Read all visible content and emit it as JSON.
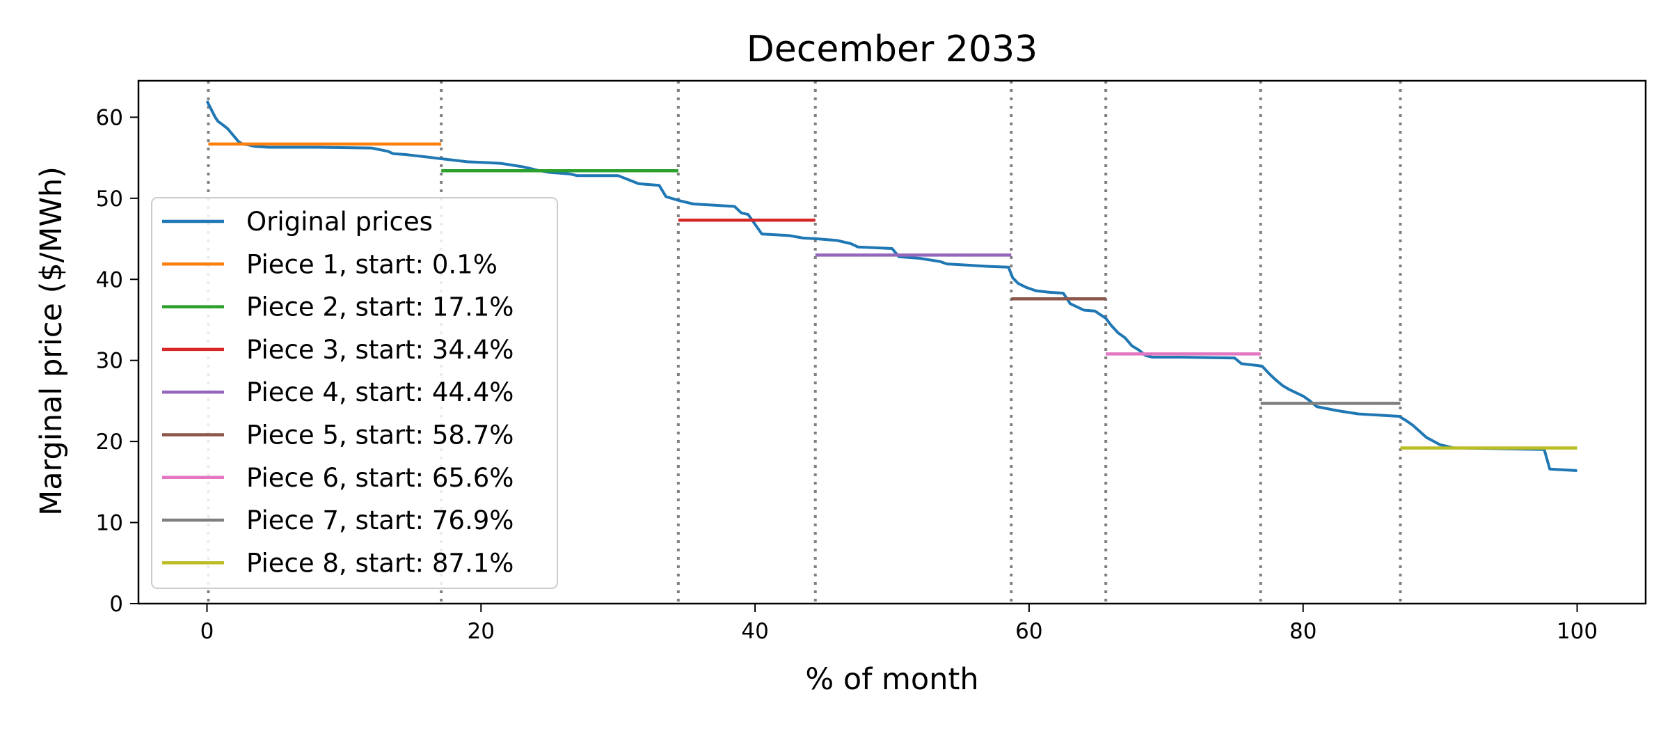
{
  "chart_data": {
    "type": "line",
    "title": "December 2033",
    "xlabel": "% of month",
    "ylabel": "Marginal price ($/MWh)",
    "xlim": [
      -5,
      105
    ],
    "ylim": [
      0,
      64.5
    ],
    "xticks": [
      0,
      20,
      40,
      60,
      80,
      100
    ],
    "yticks": [
      0,
      10,
      20,
      30,
      40,
      50,
      60
    ],
    "grid": false,
    "legend_position": "lower-left",
    "original": {
      "name": "Original prices",
      "color": "#1f77b4",
      "x": [
        0,
        0.3,
        0.6,
        0.8,
        1.2,
        1.5,
        1.9,
        2.3,
        2.6,
        3.0,
        3.5,
        4.5,
        8.0,
        12.0,
        13.2,
        13.6,
        14.5,
        15.5,
        16.0,
        17.0,
        17.5,
        19.0,
        20.5,
        21.5,
        23.0,
        23.8,
        24.0,
        25.0,
        26.5,
        27.0,
        30.0,
        31.5,
        33.0,
        33.5,
        34.5,
        35.5,
        36.5,
        38.5,
        39.0,
        39.5,
        40.5,
        42.5,
        43.5,
        44.5,
        46.0,
        47.0,
        47.5,
        50.0,
        50.5,
        52.0,
        53.5,
        54.0,
        57.0,
        58.5,
        58.8,
        59.2,
        59.8,
        60.5,
        61.5,
        62.5,
        63.0,
        64.0,
        64.8,
        65.6,
        66.0,
        66.5,
        67.0,
        67.5,
        68.0,
        68.5,
        69.0,
        71.0,
        75.0,
        75.5,
        77.0,
        77.5,
        78.0,
        78.5,
        79.0,
        80.0,
        80.5,
        81.0,
        82.5,
        84.0,
        87.0,
        87.5,
        88.0,
        89.0,
        90.0,
        91.0,
        95.0,
        97.6,
        98.0,
        100.0
      ],
      "y": [
        62.0,
        61.0,
        60.0,
        59.5,
        59.0,
        58.6,
        57.8,
        57.0,
        56.7,
        56.6,
        56.4,
        56.3,
        56.3,
        56.2,
        55.8,
        55.5,
        55.4,
        55.2,
        55.1,
        54.9,
        54.8,
        54.5,
        54.4,
        54.3,
        53.9,
        53.6,
        53.5,
        53.2,
        53.0,
        52.8,
        52.8,
        51.8,
        51.6,
        50.2,
        49.7,
        49.3,
        49.2,
        49.0,
        48.2,
        48.0,
        45.6,
        45.4,
        45.1,
        45.0,
        44.8,
        44.4,
        44.0,
        43.8,
        42.8,
        42.6,
        42.2,
        41.9,
        41.6,
        41.5,
        40.2,
        39.5,
        39.0,
        38.6,
        38.4,
        38.3,
        37.0,
        36.2,
        36.1,
        35.2,
        34.3,
        33.4,
        32.8,
        31.8,
        31.3,
        30.6,
        30.4,
        30.4,
        30.3,
        29.6,
        29.3,
        28.4,
        27.6,
        26.9,
        26.4,
        25.6,
        25.0,
        24.3,
        23.8,
        23.4,
        23.1,
        22.6,
        22.0,
        20.5,
        19.6,
        19.2,
        19.1,
        19.0,
        16.6,
        16.4
      ]
    },
    "pieces": [
      {
        "name": "Piece 1, start: 0.1%",
        "color": "#ff7f0e",
        "x_start": 0.1,
        "x_end": 17.1,
        "value": 56.7
      },
      {
        "name": "Piece 2, start: 17.1%",
        "color": "#2ca02c",
        "x_start": 17.1,
        "x_end": 34.4,
        "value": 53.4
      },
      {
        "name": "Piece 3, start: 34.4%",
        "color": "#d62728",
        "x_start": 34.4,
        "x_end": 44.4,
        "value": 47.3
      },
      {
        "name": "Piece 4, start: 44.4%",
        "color": "#9467bd",
        "x_start": 44.4,
        "x_end": 58.7,
        "value": 43.0
      },
      {
        "name": "Piece 5, start: 58.7%",
        "color": "#8c564b",
        "x_start": 58.7,
        "x_end": 65.6,
        "value": 37.6
      },
      {
        "name": "Piece 6, start: 65.6%",
        "color": "#e377c2",
        "x_start": 65.6,
        "x_end": 76.9,
        "value": 30.8
      },
      {
        "name": "Piece 7, start: 76.9%",
        "color": "#7f7f7f",
        "x_start": 76.9,
        "x_end": 87.1,
        "value": 24.7
      },
      {
        "name": "Piece 8, start: 87.1%",
        "color": "#bcbd22",
        "x_start": 87.1,
        "x_end": 100.0,
        "value": 19.2
      }
    ],
    "breakpoints": [
      0.1,
      17.1,
      34.4,
      44.4,
      58.7,
      65.6,
      76.9,
      87.1
    ],
    "breakpoint_color": "#808080"
  }
}
